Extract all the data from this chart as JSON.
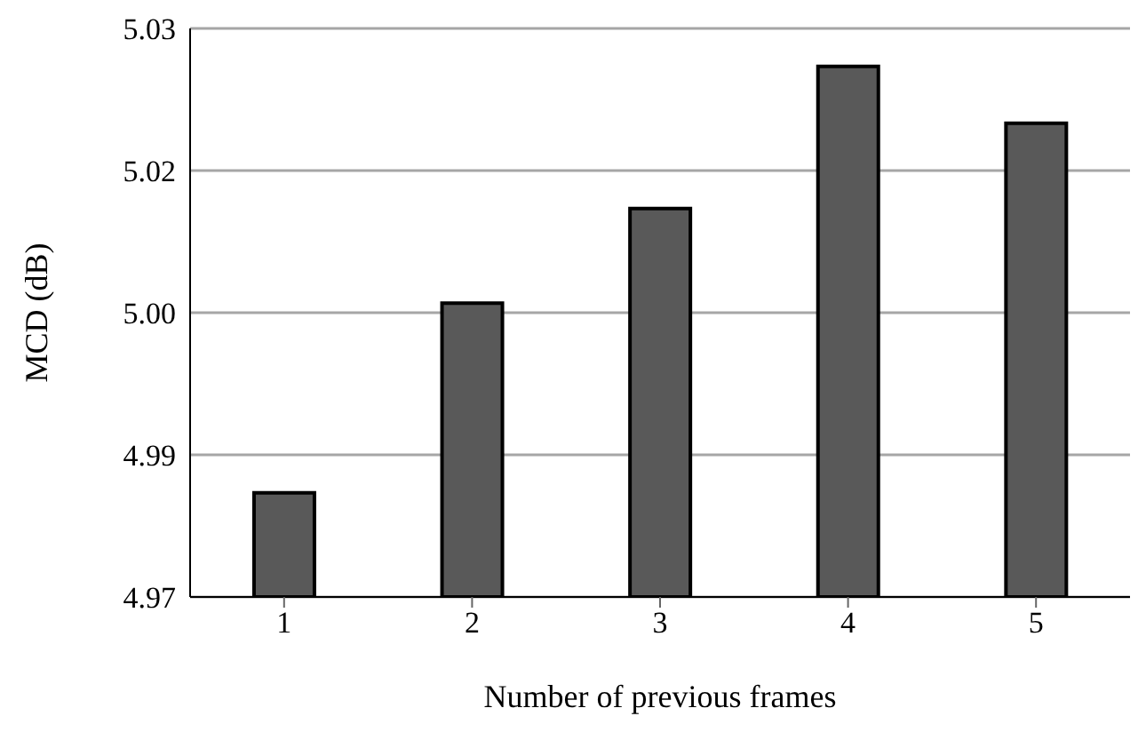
{
  "chart_data": {
    "type": "bar",
    "xlabel": "Number of previous frames",
    "ylabel": "MCD (dB)",
    "categories": [
      "1",
      "2",
      "3",
      "4",
      "5"
    ],
    "values": [
      4.981,
      5.001,
      5.011,
      5.026,
      5.02
    ],
    "color": "#595959",
    "ylim": [
      4.97,
      5.03
    ],
    "yticks": [
      {
        "value": 4.97,
        "label": "4.97"
      },
      {
        "value": 4.985,
        "label": "4.99"
      },
      {
        "value": 5.0,
        "label": "5.00"
      },
      {
        "value": 5.015,
        "label": "5.02"
      },
      {
        "value": 5.03,
        "label": "5.03"
      }
    ],
    "grid": "y"
  }
}
